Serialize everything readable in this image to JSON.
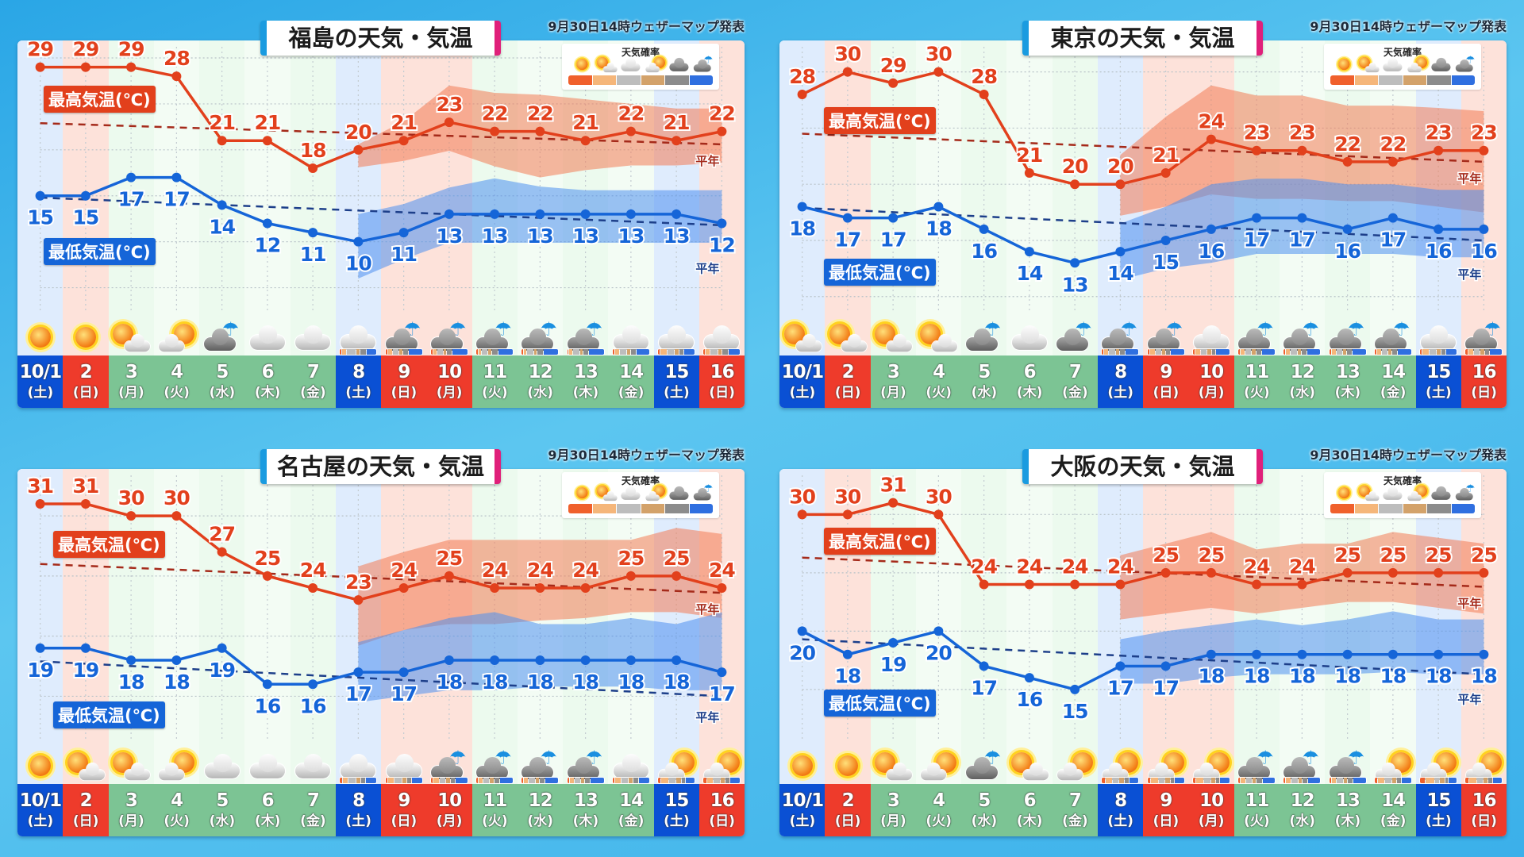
{
  "issued": "9月30日14時ウェザーマップ発表",
  "labels": {
    "high": "最高気温(℃)",
    "low": "最低気温(℃)",
    "normal": "平年"
  },
  "legend": {
    "title": "天気確率",
    "icons": [
      "sun",
      "sun-cloud",
      "cloud",
      "cloud-sun",
      "dark-cloud",
      "rain"
    ],
    "colors": [
      "#f0602c",
      "#f5b67a",
      "#bdbdbd",
      "#d3a26a",
      "#8c8c8c",
      "#2f6fe0"
    ]
  },
  "colors": {
    "high": "#e2401c",
    "low": "#1565d8",
    "high_normal": "#a52a1a",
    "low_normal": "#1d3f8a"
  },
  "dates": [
    {
      "d": "10/1",
      "w": "(土)",
      "type": "sat"
    },
    {
      "d": "2",
      "w": "(日)",
      "type": "sun"
    },
    {
      "d": "3",
      "w": "(月)",
      "type": "wk"
    },
    {
      "d": "4",
      "w": "(火)",
      "type": "wk"
    },
    {
      "d": "5",
      "w": "(水)",
      "type": "wk"
    },
    {
      "d": "6",
      "w": "(木)",
      "type": "wk"
    },
    {
      "d": "7",
      "w": "(金)",
      "type": "wk"
    },
    {
      "d": "8",
      "w": "(土)",
      "type": "sat"
    },
    {
      "d": "9",
      "w": "(日)",
      "type": "sun"
    },
    {
      "d": "10",
      "w": "(月)",
      "type": "sun"
    },
    {
      "d": "11",
      "w": "(火)",
      "type": "wk"
    },
    {
      "d": "12",
      "w": "(水)",
      "type": "wk"
    },
    {
      "d": "13",
      "w": "(木)",
      "type": "wk"
    },
    {
      "d": "14",
      "w": "(金)",
      "type": "wk"
    },
    {
      "d": "15",
      "w": "(土)",
      "type": "sat"
    },
    {
      "d": "16",
      "w": "(日)",
      "type": "sun"
    }
  ],
  "chart_data": [
    {
      "type": "line",
      "title": "福島の天気・気温",
      "ylim": [
        2.2,
        31.9
      ],
      "high": [
        29,
        29,
        29,
        28,
        21,
        21,
        18,
        20,
        21,
        23,
        22,
        22,
        21,
        22,
        21,
        22
      ],
      "low": [
        15,
        15,
        17,
        17,
        14,
        12,
        11,
        10,
        11,
        13,
        13,
        13,
        13,
        13,
        13,
        12
      ],
      "high_normal": [
        22.9,
        20.6
      ],
      "low_normal": [
        14.8,
        11.8
      ],
      "high_range": [
        [
          18.1,
          20.6
        ],
        [
          18.8,
          23.1
        ],
        [
          19.9,
          27.0
        ],
        [
          18.2,
          26.2
        ],
        [
          17.0,
          26.0
        ],
        [
          17.8,
          25.5
        ],
        [
          18.3,
          25.0
        ],
        [
          18.3,
          24.5
        ],
        [
          18.6,
          24.5
        ]
      ],
      "low_range": [
        [
          6.0,
          13.0
        ],
        [
          8.1,
          14.1
        ],
        [
          9.9,
          15.9
        ],
        [
          9.9,
          16.9
        ],
        [
          9.9,
          16.0
        ],
        [
          9.9,
          15.6
        ],
        [
          9.9,
          15.6
        ],
        [
          9.9,
          15.6
        ],
        [
          9.9,
          15.6
        ]
      ],
      "weather": [
        "sun",
        "sun",
        "sun-cloud",
        "cloud-sun",
        "rain",
        "cloud",
        "cloud",
        "cloud",
        "rain",
        "rain",
        "rain",
        "rain",
        "rain",
        "cloud",
        "cloud",
        "cloud"
      ],
      "prob": [
        [
          5,
          12,
          25,
          10,
          18,
          30
        ],
        [
          5,
          12,
          18,
          10,
          15,
          40
        ],
        [
          4,
          10,
          18,
          8,
          15,
          45
        ],
        [
          4,
          8,
          18,
          8,
          17,
          45
        ],
        [
          4,
          8,
          18,
          8,
          17,
          45
        ],
        [
          4,
          10,
          18,
          8,
          15,
          45
        ],
        [
          5,
          12,
          20,
          10,
          15,
          38
        ],
        [
          5,
          18,
          20,
          12,
          12,
          33
        ],
        [
          5,
          12,
          22,
          10,
          15,
          36
        ]
      ]
    },
    {
      "type": "line",
      "title": "東京の天気・気温",
      "ylim": [
        8.5,
        32.8
      ],
      "high": [
        28,
        30,
        29,
        30,
        28,
        21,
        20,
        20,
        21,
        24,
        23,
        23,
        22,
        22,
        23,
        23
      ],
      "low": [
        18,
        17,
        17,
        18,
        16,
        14,
        13,
        14,
        15,
        16,
        17,
        17,
        16,
        17,
        16,
        16
      ],
      "high_normal": [
        24.5,
        22.0
      ],
      "low_normal": [
        17.9,
        15.0
      ],
      "high_range": [
        [
          17.2,
          22.6
        ],
        [
          18.0,
          26.0
        ],
        [
          19.1,
          28.8
        ],
        [
          18.7,
          27.9
        ],
        [
          18.7,
          27.9
        ],
        [
          18.5,
          27.0
        ],
        [
          18.5,
          27.0
        ],
        [
          18.0,
          26.8
        ],
        [
          17.5,
          26.5
        ]
      ],
      "low_range": [
        [
          11.5,
          16.5
        ],
        [
          12.5,
          18.0
        ],
        [
          13.0,
          20.0
        ],
        [
          13.8,
          20.5
        ],
        [
          13.8,
          20.5
        ],
        [
          13.8,
          20.0
        ],
        [
          13.8,
          20.0
        ],
        [
          13.5,
          19.5
        ],
        [
          13.5,
          19.5
        ]
      ],
      "weather": [
        "sun-cloud",
        "sun-cloud",
        "sun-cloud",
        "sun-cloud",
        "rain",
        "cloud",
        "rain",
        "rain",
        "rain",
        "cloud",
        "rain",
        "rain",
        "rain",
        "rain",
        "cloud",
        "rain"
      ],
      "prob": [
        [
          5,
          12,
          18,
          10,
          15,
          40
        ],
        [
          5,
          15,
          18,
          10,
          12,
          40
        ],
        [
          5,
          15,
          18,
          10,
          12,
          40
        ],
        [
          5,
          12,
          18,
          10,
          15,
          40
        ],
        [
          5,
          12,
          18,
          10,
          15,
          40
        ],
        [
          5,
          12,
          18,
          10,
          15,
          40
        ],
        [
          5,
          12,
          18,
          10,
          15,
          40
        ],
        [
          5,
          18,
          20,
          12,
          12,
          33
        ],
        [
          6,
          15,
          18,
          12,
          12,
          37
        ]
      ]
    },
    {
      "type": "line",
      "title": "名古屋の天気・気温",
      "ylim": [
        11.2,
        33.9
      ],
      "high": [
        31,
        31,
        30,
        30,
        27,
        25,
        24,
        23,
        24,
        25,
        24,
        24,
        24,
        25,
        25,
        24
      ],
      "low": [
        19,
        19,
        18,
        18,
        19,
        16,
        16,
        17,
        17,
        18,
        18,
        18,
        18,
        18,
        18,
        17
      ],
      "high_normal": [
        26.0,
        23.6
      ],
      "low_normal": [
        17.9,
        15.0
      ],
      "high_range": [
        [
          19.2,
          25.8
        ],
        [
          20.5,
          27.0
        ],
        [
          21.0,
          28.0
        ],
        [
          21.0,
          28.0
        ],
        [
          21.3,
          28.0
        ],
        [
          21.5,
          28.0
        ],
        [
          22.0,
          28.0
        ],
        [
          22.0,
          29.0
        ],
        [
          21.5,
          28.5
        ]
      ],
      "low_range": [
        [
          14.5,
          19.5
        ],
        [
          15.0,
          20.5
        ],
        [
          15.5,
          21.5
        ],
        [
          15.5,
          22.0
        ],
        [
          15.8,
          21.0
        ],
        [
          15.8,
          21.0
        ],
        [
          15.8,
          21.5
        ],
        [
          15.5,
          21.0
        ],
        [
          15.5,
          22.0
        ]
      ],
      "weather": [
        "sun",
        "sun-cloud",
        "sun-cloud",
        "cloud-sun",
        "cloud",
        "cloud",
        "cloud",
        "cloud",
        "cloud",
        "rain",
        "rain",
        "rain",
        "rain",
        "cloud",
        "cloud-sun",
        "cloud-sun"
      ],
      "prob": [
        [
          6,
          14,
          22,
          12,
          14,
          32
        ],
        [
          6,
          18,
          20,
          12,
          12,
          32
        ],
        [
          6,
          16,
          18,
          12,
          12,
          36
        ],
        [
          5,
          12,
          18,
          10,
          15,
          40
        ],
        [
          5,
          12,
          18,
          10,
          15,
          40
        ],
        [
          5,
          12,
          18,
          10,
          15,
          40
        ],
        [
          6,
          16,
          20,
          12,
          14,
          32
        ],
        [
          8,
          22,
          18,
          14,
          10,
          28
        ],
        [
          8,
          18,
          20,
          12,
          12,
          30
        ]
      ]
    },
    {
      "type": "line",
      "title": "大阪の天気・気温",
      "ylim": [
        10.5,
        33.9
      ],
      "high": [
        30,
        30,
        31,
        30,
        24,
        24,
        24,
        24,
        25,
        25,
        24,
        24,
        25,
        25,
        25,
        25
      ],
      "low": [
        20,
        18,
        19,
        20,
        17,
        16,
        15,
        17,
        17,
        18,
        18,
        18,
        18,
        18,
        18,
        18
      ],
      "high_normal": [
        26.3,
        23.8
      ],
      "low_normal": [
        19.3,
        16.3
      ],
      "high_range": [
        [
          21.0,
          26.5
        ],
        [
          21.5,
          27.5
        ],
        [
          22.0,
          28.5
        ],
        [
          21.5,
          27.0
        ],
        [
          22.0,
          27.5
        ],
        [
          22.5,
          27.5
        ],
        [
          22.5,
          28.5
        ],
        [
          22.0,
          28.0
        ],
        [
          21.5,
          27.5
        ]
      ],
      "low_range": [
        [
          15.5,
          19.3
        ],
        [
          15.5,
          20.0
        ],
        [
          16.0,
          20.5
        ],
        [
          16.3,
          21.0
        ],
        [
          16.3,
          20.5
        ],
        [
          16.3,
          21.0
        ],
        [
          16.5,
          21.7
        ],
        [
          16.3,
          21.0
        ],
        [
          16.3,
          21.0
        ]
      ],
      "weather": [
        "sun",
        "sun",
        "sun-cloud",
        "cloud-sun",
        "rain",
        "sun-cloud",
        "cloud-sun",
        "cloud-sun",
        "cloud-sun",
        "cloud-sun",
        "rain",
        "rain",
        "rain",
        "cloud-sun",
        "cloud-sun",
        "cloud-sun"
      ],
      "prob": [
        [
          8,
          20,
          18,
          14,
          12,
          28
        ],
        [
          8,
          22,
          18,
          14,
          10,
          28
        ],
        [
          8,
          22,
          18,
          14,
          10,
          28
        ],
        [
          5,
          14,
          18,
          10,
          15,
          38
        ],
        [
          5,
          14,
          18,
          10,
          15,
          38
        ],
        [
          5,
          14,
          18,
          10,
          15,
          38
        ],
        [
          8,
          20,
          18,
          14,
          12,
          28
        ],
        [
          15,
          25,
          14,
          14,
          8,
          24
        ],
        [
          10,
          20,
          18,
          12,
          12,
          28
        ]
      ]
    }
  ]
}
